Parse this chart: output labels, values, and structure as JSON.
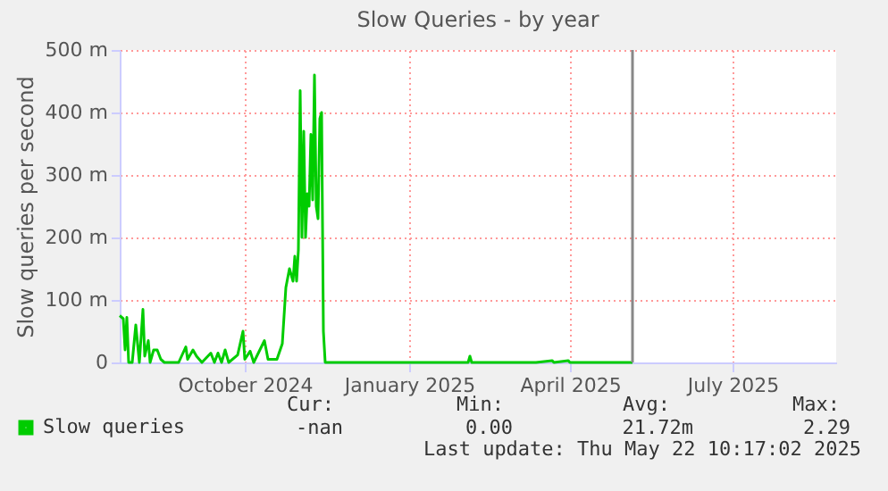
{
  "chart_data": {
    "type": "line",
    "title": "Slow Queries - by year",
    "ylabel": "Slow queries per second",
    "x": [
      "2024-07-23",
      "2024-07-25",
      "2024-07-26",
      "2024-07-27",
      "2024-07-28",
      "2024-07-30",
      "2024-08-01",
      "2024-08-02",
      "2024-08-03",
      "2024-08-05",
      "2024-08-06",
      "2024-08-08",
      "2024-08-09",
      "2024-08-11",
      "2024-08-13",
      "2024-08-15",
      "2024-08-17",
      "2024-08-25",
      "2024-08-29",
      "2024-08-30",
      "2024-09-02",
      "2024-09-04",
      "2024-09-07",
      "2024-09-12",
      "2024-09-14",
      "2024-09-16",
      "2024-09-18",
      "2024-09-20",
      "2024-09-22",
      "2024-09-27",
      "2024-09-30",
      "2024-10-01",
      "2024-10-04",
      "2024-10-06",
      "2024-10-12",
      "2024-10-14",
      "2024-10-19",
      "2024-10-22",
      "2024-10-24",
      "2024-10-26",
      "2024-10-28",
      "2024-10-29",
      "2024-10-30",
      "2024-10-31",
      "2024-11-01",
      "2024-11-02",
      "2024-11-03",
      "2024-11-04",
      "2024-11-05",
      "2024-11-06",
      "2024-11-07",
      "2024-11-08",
      "2024-11-09",
      "2024-11-10",
      "2024-11-11",
      "2024-11-12",
      "2024-11-13",
      "2024-11-14",
      "2024-11-15",
      "2024-12-03",
      "2025-02-03",
      "2025-02-04",
      "2025-02-05",
      "2025-03-13",
      "2025-03-22",
      "2025-03-23",
      "2025-03-31",
      "2025-04-01",
      "2025-05-06"
    ],
    "series": [
      {
        "name": "Slow queries",
        "color": "#00cc00",
        "values": [
          75,
          70,
          20,
          72,
          0,
          0,
          60,
          30,
          0,
          85,
          10,
          35,
          0,
          20,
          20,
          5,
          0,
          0,
          25,
          5,
          20,
          10,
          0,
          15,
          0,
          15,
          0,
          20,
          0,
          12,
          50,
          5,
          18,
          0,
          35,
          5,
          5,
          30,
          120,
          150,
          130,
          170,
          130,
          180,
          435,
          200,
          370,
          200,
          270,
          250,
          365,
          260,
          460,
          250,
          230,
          390,
          400,
          50,
          0,
          0,
          0,
          10,
          0,
          0,
          3,
          0,
          3,
          0,
          0
        ]
      }
    ],
    "xlim": [
      "2024-07-23",
      "2025-08-28"
    ],
    "xticks": [
      {
        "value": "2024-10-01",
        "label": "October 2024"
      },
      {
        "value": "2025-01-01",
        "label": "January 2025"
      },
      {
        "value": "2025-04-01",
        "label": "April 2025"
      },
      {
        "value": "2025-07-01",
        "label": "July 2025"
      }
    ],
    "ylim": [
      0,
      500
    ],
    "yticks": [
      0,
      {
        "value": 100,
        "label": "100 m"
      },
      {
        "value": 200,
        "label": "200 m"
      },
      {
        "value": 300,
        "label": "300 m"
      },
      {
        "value": 400,
        "label": "400 m"
      },
      {
        "value": 500,
        "label": "500 m"
      }
    ],
    "ref_lines": [
      {
        "axis": "x",
        "value": "2025-05-06",
        "color": "#888888"
      }
    ],
    "grid": true,
    "legend": "bottom left",
    "marker": "none",
    "line_style": "solid",
    "annotations": [
      "Cur:",
      "Min:",
      "Avg:",
      "Max:",
      "-nan",
      "0.00",
      "21.72m",
      "2.29",
      "Last update: Thu May 22 10:17:02 2025"
    ]
  }
}
